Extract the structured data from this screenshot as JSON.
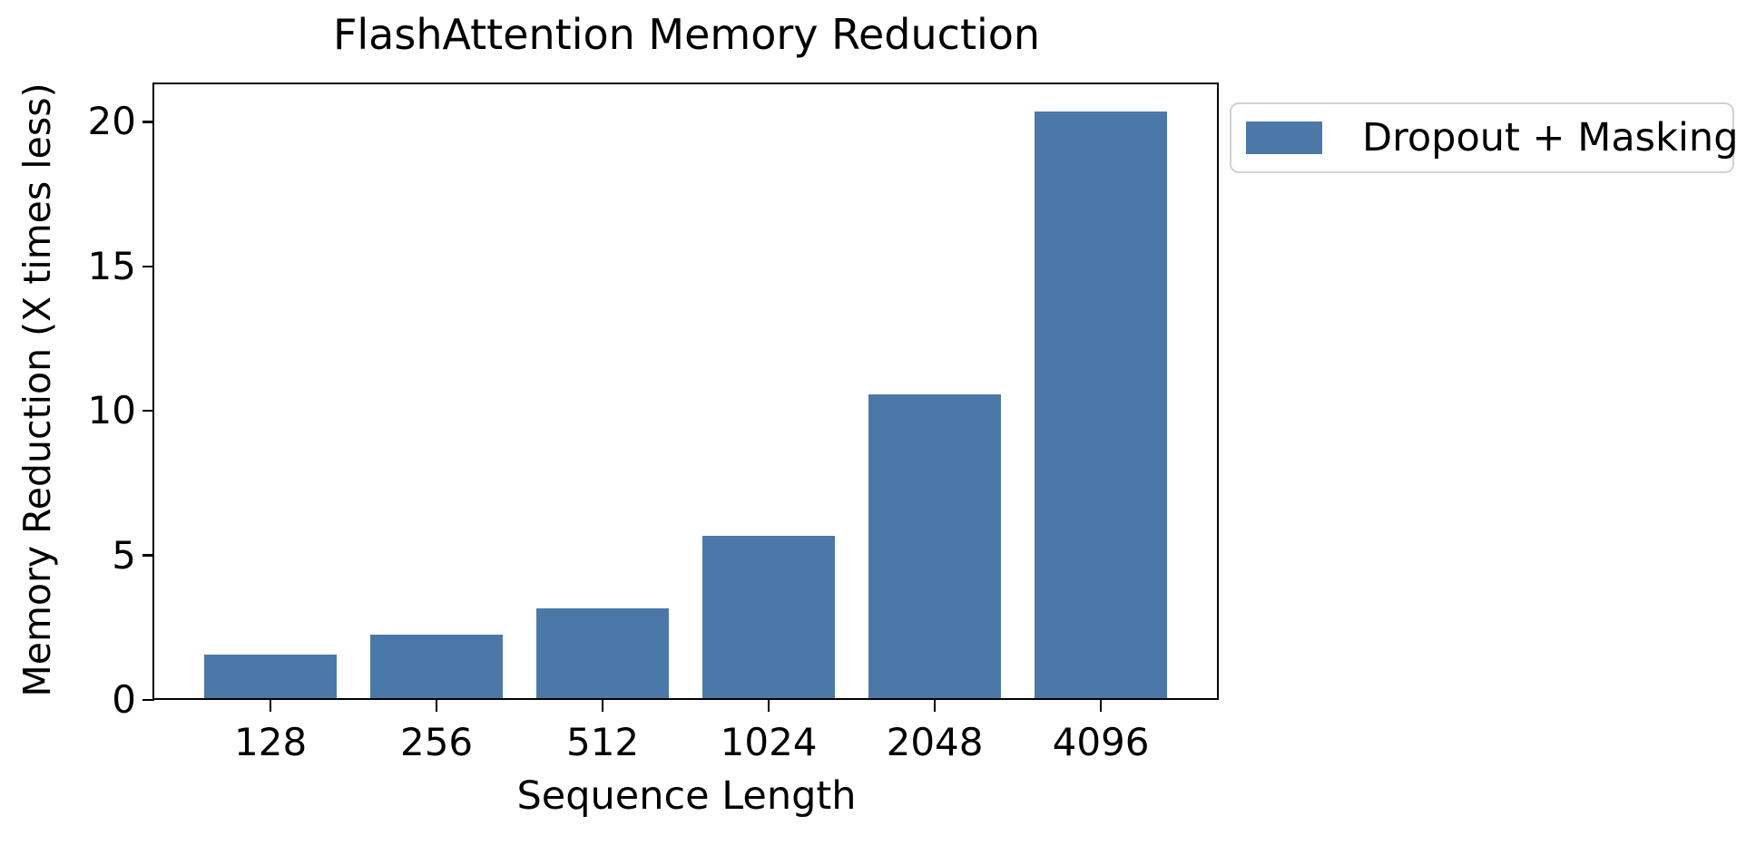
{
  "chart_data": {
    "type": "bar",
    "title": "FlashAttention Memory Reduction",
    "xlabel": "Sequence Length",
    "ylabel": "Memory Reduction (X times less)",
    "categories": [
      "128",
      "256",
      "512",
      "1024",
      "2048",
      "4096"
    ],
    "series": [
      {
        "name": "Dropout + Masking",
        "values": [
          1.5,
          2.2,
          3.1,
          5.6,
          10.5,
          20.3
        ],
        "color": "#4c78a8"
      }
    ],
    "ytick_labels": [
      "0",
      "5",
      "10",
      "15",
      "20"
    ],
    "ytick_values": [
      0,
      5,
      10,
      15,
      20
    ],
    "ylim": [
      0,
      21.3
    ],
    "grid": false,
    "legend": {
      "position": "outside-upper-right",
      "items": [
        {
          "label": "Dropout + Masking",
          "color": "#4c78a8"
        }
      ]
    }
  },
  "colors": {
    "bar": "#4c78a8",
    "axis": "#000000",
    "text": "#000000",
    "background": "#ffffff",
    "legend_border": "#d2d2d2"
  }
}
